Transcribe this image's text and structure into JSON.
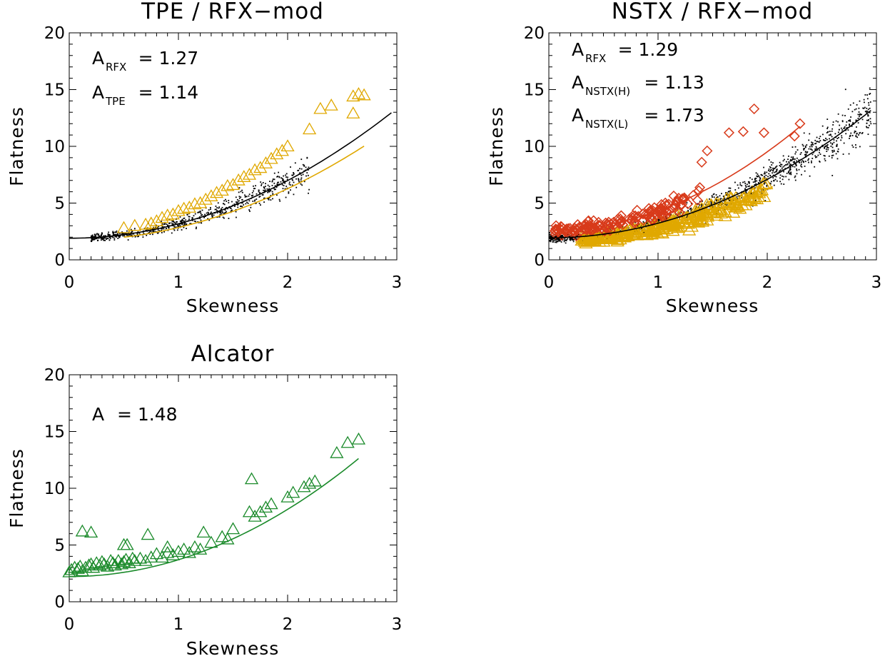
{
  "chart_data": [
    {
      "type": "scatter",
      "title": "TPE / RFX−mod",
      "xlabel": "Skewness",
      "ylabel": "Flatness",
      "xlim": [
        0,
        3
      ],
      "ylim": [
        0,
        20
      ],
      "xticks": [
        "0",
        "1",
        "2",
        "3"
      ],
      "yticks": [
        "0",
        "5",
        "10",
        "15",
        "20"
      ],
      "annotations": [
        {
          "label": "A",
          "sub": "RFX",
          "value": "= 1.27"
        },
        {
          "label": "A",
          "sub": "TPE",
          "value": "= 1.14"
        }
      ],
      "series": [
        {
          "marker": "dot",
          "color": "#000000",
          "cloud": {
            "n": 700,
            "x_from": 0.2,
            "x_to": 2.2,
            "coef": 1.27
          }
        },
        {
          "marker": "triangle",
          "color": "#e0a800",
          "x": [
            0.5,
            0.6,
            0.7,
            0.75,
            0.8,
            0.85,
            0.9,
            0.95,
            1.0,
            1.05,
            1.1,
            1.15,
            1.2,
            1.25,
            1.3,
            1.35,
            1.4,
            1.45,
            1.5,
            1.55,
            1.6,
            1.65,
            1.7,
            1.75,
            1.8,
            1.85,
            1.9,
            1.95,
            2.0,
            2.2,
            2.3,
            2.4,
            2.6,
            2.65,
            2.7,
            2.6
          ],
          "y": [
            2.8,
            3.0,
            3.1,
            3.2,
            3.4,
            3.7,
            3.9,
            4.0,
            4.3,
            4.5,
            4.6,
            4.9,
            5.0,
            5.3,
            5.6,
            5.9,
            6.1,
            6.5,
            6.6,
            7.0,
            7.3,
            7.5,
            7.9,
            8.1,
            8.5,
            8.9,
            9.3,
            9.6,
            10.0,
            11.5,
            13.3,
            13.6,
            14.4,
            14.6,
            14.5,
            12.9
          ]
        }
      ],
      "fits": [
        {
          "color": "#000000",
          "x_from": 0.0,
          "x_to": 2.95,
          "coef": 1.27
        },
        {
          "color": "#e0a800",
          "x_from": 0.5,
          "x_to": 2.7,
          "coef": 1.14
        }
      ]
    },
    {
      "type": "scatter",
      "title": "NSTX / RFX−mod",
      "xlabel": "Skewness",
      "ylabel": "Flatness",
      "xlim": [
        0,
        3
      ],
      "ylim": [
        0,
        20
      ],
      "xticks": [
        "0",
        "1",
        "2",
        "3"
      ],
      "yticks": [
        "0",
        "5",
        "10",
        "15",
        "20"
      ],
      "annotations": [
        {
          "label": "A",
          "sub": "RFX",
          "value": "= 1.29"
        },
        {
          "label": "A",
          "sub": "NSTX(H)",
          "value": "= 1.13"
        },
        {
          "label": "A",
          "sub": "NSTX(L)",
          "value": "= 1.73"
        }
      ],
      "series": [
        {
          "marker": "dot",
          "color": "#000000",
          "cloud": {
            "n": 1500,
            "x_from": 0.0,
            "x_to": 2.95,
            "coef": 1.29
          }
        },
        {
          "marker": "triangle",
          "color": "#e0a800",
          "cloud": {
            "n": 260,
            "x_from": 0.3,
            "x_to": 2.0,
            "coef": 1.13
          }
        },
        {
          "marker": "diamond",
          "color": "#d83a1a",
          "cloud": {
            "n": 150,
            "x_from": 0.05,
            "x_to": 1.4,
            "coef": 1.73
          }
        },
        {
          "marker": "diamond",
          "color": "#d83a1a",
          "x": [
            1.4,
            1.45,
            1.65,
            1.78,
            1.88,
            1.97,
            2.25,
            2.3
          ],
          "y": [
            8.6,
            9.6,
            11.2,
            11.3,
            13.3,
            11.2,
            10.9,
            12.0
          ]
        }
      ],
      "fits": [
        {
          "color": "#000000",
          "x_from": 0.0,
          "x_to": 2.95,
          "coef": 1.29
        },
        {
          "color": "#d83a1a",
          "x_from": 0.05,
          "x_to": 2.3,
          "coef": 1.73
        },
        {
          "color": "#e0a800",
          "x_from": 0.3,
          "x_to": 2.05,
          "coef": 1.13
        }
      ]
    },
    {
      "type": "scatter",
      "title": "Alcator",
      "xlabel": "Skewness",
      "ylabel": "Flatness",
      "xlim": [
        0,
        3
      ],
      "ylim": [
        0,
        20
      ],
      "xticks": [
        "0",
        "1",
        "2",
        "3"
      ],
      "yticks": [
        "0",
        "5",
        "10",
        "15",
        "20"
      ],
      "annotations": [
        {
          "label": "A",
          "sub": "",
          "value": "= 1.48"
        }
      ],
      "series": [
        {
          "marker": "triangle",
          "color": "#1a8a2a",
          "x": [
            0.0,
            0.02,
            0.05,
            0.08,
            0.1,
            0.12,
            0.15,
            0.18,
            0.2,
            0.22,
            0.25,
            0.28,
            0.3,
            0.32,
            0.35,
            0.38,
            0.4,
            0.42,
            0.45,
            0.48,
            0.5,
            0.52,
            0.55,
            0.58,
            0.6,
            0.65,
            0.7,
            0.75,
            0.8,
            0.85,
            0.9,
            0.95,
            1.0,
            1.05,
            1.1,
            1.15,
            1.2,
            1.3,
            1.4,
            1.45,
            1.5,
            1.65,
            1.7,
            1.75,
            1.8,
            1.85,
            2.0,
            2.05,
            2.15,
            2.2,
            2.25,
            2.45,
            2.55,
            2.65,
            0.12,
            0.2,
            0.5,
            0.53,
            0.72,
            1.67,
            0.9,
            1.23
          ],
          "y": [
            2.6,
            2.8,
            3.0,
            2.9,
            3.1,
            2.7,
            3.0,
            3.2,
            3.3,
            3.0,
            3.4,
            3.2,
            3.5,
            3.3,
            3.1,
            3.6,
            3.4,
            3.2,
            3.6,
            3.3,
            3.5,
            3.7,
            3.4,
            3.8,
            3.6,
            3.8,
            3.6,
            3.9,
            4.2,
            3.9,
            4.3,
            4.1,
            4.4,
            4.6,
            4.3,
            4.8,
            4.6,
            5.2,
            5.7,
            5.5,
            6.4,
            7.9,
            7.5,
            7.9,
            8.3,
            8.6,
            9.2,
            9.6,
            10.1,
            10.4,
            10.6,
            13.1,
            14.0,
            14.3,
            6.2,
            6.1,
            5.0,
            5.0,
            5.9,
            10.8,
            4.8,
            6.1
          ]
        }
      ],
      "fits": [
        {
          "color": "#1a8a2a",
          "x_from": 0.0,
          "x_to": 2.65,
          "coef": 1.48
        }
      ]
    }
  ]
}
